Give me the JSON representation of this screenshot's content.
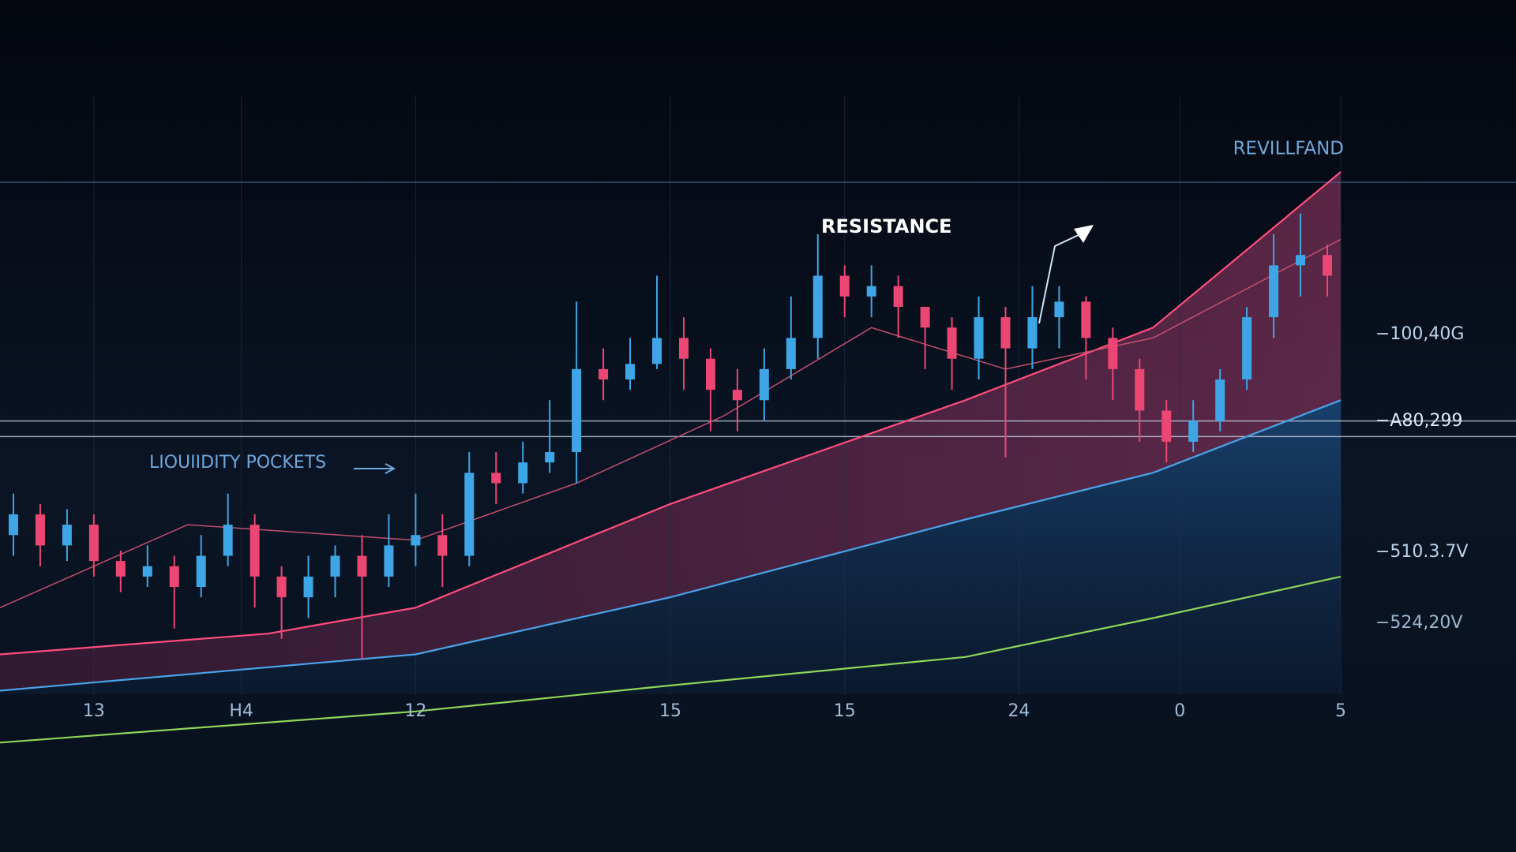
{
  "chart_data": {
    "type": "candlestick",
    "title": "REVILLFAND",
    "annotations": [
      "RESISTANCE",
      "LIOUIIDITY POCKETS"
    ],
    "price_labels": [
      "−100,40G",
      "−A80,299",
      "−510.3.7V",
      "−524,20V"
    ],
    "xlim": [
      0,
      100
    ],
    "xticks": [
      {
        "value": 7,
        "label": "13"
      },
      {
        "value": 18,
        "label": "H4"
      },
      {
        "value": 31,
        "label": "12"
      },
      {
        "value": 50,
        "label": "15"
      },
      {
        "value": 63,
        "label": "15"
      },
      {
        "value": 76,
        "label": "24"
      },
      {
        "value": 88,
        "label": "0"
      },
      {
        "value": 100,
        "label": "5"
      }
    ],
    "ylim": [
      -20,
      100
    ],
    "levels": [
      98,
      52,
      49
    ],
    "grid": true,
    "up_color": "#3ea6e6",
    "down_color": "#ec4673",
    "candles": {
      "x": [
        1,
        3,
        5,
        7,
        9,
        11,
        13,
        15,
        17,
        19,
        21,
        23,
        25,
        27,
        29,
        31,
        33,
        35,
        37,
        39,
        41,
        43,
        45,
        47,
        49,
        51,
        53,
        55,
        57,
        59,
        61,
        63,
        65,
        67,
        69,
        71,
        73,
        75,
        77,
        79,
        81,
        83,
        85,
        87,
        89,
        91,
        93,
        95,
        97,
        99
      ],
      "open": [
        30,
        34,
        28,
        32,
        25,
        22,
        24,
        20,
        26,
        32,
        22,
        18,
        22,
        26,
        22,
        28,
        30,
        26,
        42,
        40,
        44,
        46,
        62,
        60,
        63,
        68,
        64,
        58,
        56,
        62,
        68,
        80,
        76,
        78,
        74,
        70,
        64,
        72,
        66,
        72,
        75,
        68,
        62,
        54,
        48,
        52,
        60,
        72,
        82,
        84
      ],
      "high": [
        38,
        36,
        35,
        34,
        27,
        28,
        26,
        30,
        38,
        34,
        24,
        26,
        28,
        30,
        34,
        38,
        34,
        46,
        46,
        48,
        56,
        75,
        66,
        68,
        80,
        72,
        66,
        62,
        66,
        76,
        88,
        82,
        82,
        80,
        74,
        72,
        76,
        74,
        78,
        78,
        76,
        70,
        64,
        56,
        56,
        62,
        74,
        88,
        92,
        86
      ],
      "low": [
        26,
        24,
        25,
        22,
        19,
        20,
        12,
        18,
        24,
        16,
        10,
        14,
        18,
        6,
        20,
        24,
        20,
        24,
        36,
        38,
        42,
        40,
        56,
        58,
        62,
        58,
        50,
        50,
        52,
        60,
        64,
        72,
        72,
        68,
        62,
        58,
        60,
        45,
        62,
        66,
        60,
        56,
        48,
        44,
        46,
        50,
        58,
        68,
        76,
        76
      ],
      "close": [
        34,
        28,
        32,
        25,
        22,
        24,
        20,
        26,
        32,
        22,
        18,
        22,
        26,
        22,
        28,
        30,
        26,
        42,
        40,
        44,
        46,
        62,
        60,
        63,
        68,
        64,
        58,
        56,
        62,
        68,
        80,
        76,
        78,
        74,
        70,
        64,
        72,
        66,
        72,
        75,
        68,
        62,
        54,
        48,
        52,
        60,
        72,
        82,
        84,
        80
      ]
    },
    "series": [
      {
        "color": "#ff4d7d",
        "x": [
          0,
          20,
          31,
          50,
          72,
          86,
          100
        ],
        "values": [
          7,
          11,
          16,
          36,
          56,
          70,
          100
        ]
      },
      {
        "color": "#4aa3e8",
        "x": [
          0,
          31,
          50,
          72,
          86,
          100
        ],
        "values": [
          0,
          7,
          18,
          33,
          42,
          56
        ]
      },
      {
        "color": "#8fd65a",
        "x": [
          0,
          31,
          50,
          72,
          86,
          100
        ],
        "values": [
          -10,
          -4,
          1,
          6.5,
          14,
          22
        ]
      },
      {
        "color": "#c4506e",
        "x": [
          0,
          14,
          31,
          43,
          54,
          65,
          75,
          86,
          100
        ],
        "values": [
          16,
          32,
          29,
          40,
          53,
          70,
          62,
          68,
          87
        ]
      }
    ]
  }
}
